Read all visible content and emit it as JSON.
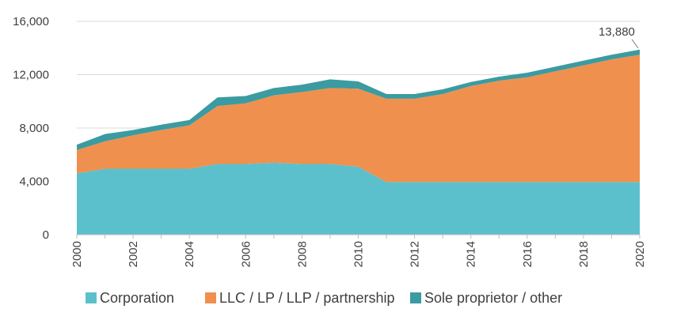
{
  "chart_data": {
    "type": "area",
    "stacked": true,
    "x": [
      2000,
      2001,
      2002,
      2003,
      2004,
      2005,
      2006,
      2007,
      2008,
      2009,
      2010,
      2011,
      2012,
      2013,
      2014,
      2015,
      2016,
      2017,
      2018,
      2019,
      2020
    ],
    "x_tick_labels": [
      "2000",
      "2002",
      "2004",
      "2006",
      "2008",
      "2010",
      "2012",
      "2014",
      "2016",
      "2018",
      "2020"
    ],
    "ylim": [
      0,
      16000
    ],
    "y_tick_labels": [
      "0",
      "4,000",
      "8,000",
      "12,000",
      "16,000"
    ],
    "grid": true,
    "legend_position": "bottom",
    "series": [
      {
        "name": "Corporation",
        "color": "#5BC0CC",
        "values": [
          4600,
          4950,
          4950,
          4950,
          4950,
          5300,
          5300,
          5400,
          5300,
          5300,
          5100,
          3950,
          3950,
          3950,
          3950,
          3950,
          3950,
          3950,
          3950,
          3950,
          3950
        ]
      },
      {
        "name": "LLC / LP / LLP / partnership",
        "color": "#F0904E",
        "values": [
          1750,
          2050,
          2500,
          2900,
          3250,
          4350,
          4550,
          5050,
          5400,
          5700,
          5850,
          6250,
          6250,
          6600,
          7200,
          7600,
          7850,
          8300,
          8750,
          9200,
          9550
        ]
      },
      {
        "name": "Sole proprietor / other",
        "color": "#3B9BA1",
        "values": [
          400,
          550,
          400,
          400,
          400,
          650,
          550,
          550,
          550,
          650,
          550,
          350,
          350,
          350,
          300,
          300,
          350,
          350,
          350,
          350,
          380
        ]
      }
    ],
    "annotations": [
      {
        "x": 2020,
        "y": 13880,
        "text": "13,880"
      }
    ]
  }
}
